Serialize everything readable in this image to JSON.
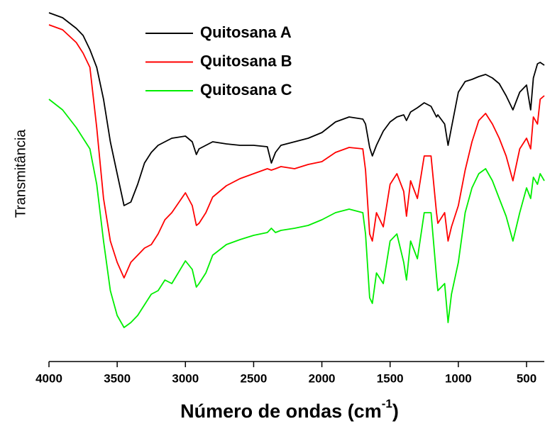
{
  "chart_data": {
    "type": "line",
    "y_label": "Transmitância",
    "x_label": {
      "text": "Número de ondas (cm",
      "superscript": "-1",
      "suffix": ")"
    },
    "xlim": [
      4000,
      370
    ],
    "xticks": [
      4000,
      3500,
      3000,
      2500,
      2000,
      1500,
      1000,
      500
    ],
    "ylim": [
      0,
      100
    ],
    "x": [
      4000,
      3900,
      3800,
      3750,
      3700,
      3650,
      3600,
      3550,
      3500,
      3450,
      3400,
      3350,
      3300,
      3250,
      3200,
      3150,
      3100,
      3000,
      2950,
      2920,
      2900,
      2850,
      2800,
      2700,
      2600,
      2500,
      2400,
      2370,
      2340,
      2300,
      2200,
      2100,
      2000,
      1900,
      1800,
      1700,
      1680,
      1650,
      1630,
      1600,
      1550,
      1500,
      1450,
      1400,
      1380,
      1350,
      1300,
      1250,
      1200,
      1160,
      1150,
      1100,
      1075,
      1050,
      1000,
      950,
      900,
      850,
      800,
      750,
      700,
      650,
      600,
      550,
      500,
      470,
      450,
      420,
      400,
      370
    ],
    "series": [
      {
        "name": "Quitosana A",
        "color": "#000000",
        "values": [
          98.4,
          97,
          94,
          92,
          88,
          83,
          74,
          62,
          53,
          44,
          45,
          50,
          56,
          59,
          61,
          62,
          63,
          63.6,
          62,
          58.4,
          60,
          61,
          62,
          61.4,
          61,
          61,
          60.6,
          56,
          59,
          61,
          62,
          63,
          64.6,
          67.6,
          69,
          68.4,
          67,
          60.4,
          58,
          61,
          65,
          67.6,
          69,
          69.6,
          68,
          70.4,
          71.6,
          73,
          72,
          69,
          69.6,
          67,
          61,
          66,
          76,
          79,
          79.6,
          80.4,
          81,
          80,
          78.4,
          75,
          71,
          76,
          78,
          71,
          80,
          84,
          84.4,
          83.6
        ]
      },
      {
        "name": "Quitosana B",
        "color": "#ff0000",
        "values": [
          95,
          93.6,
          90,
          87,
          83,
          66,
          46,
          34,
          28,
          23.6,
          28,
          30,
          32,
          33,
          36,
          40,
          42,
          47.6,
          44,
          38.4,
          39,
          42,
          46.4,
          49.6,
          51.6,
          53,
          54.4,
          54,
          54.4,
          55,
          54.4,
          55.6,
          56.4,
          59,
          60.4,
          60,
          54,
          36,
          34,
          42,
          38,
          50,
          53,
          48,
          41,
          51,
          46,
          58,
          58,
          42,
          39,
          42,
          34,
          38,
          44,
          54,
          62,
          68,
          70,
          67,
          63,
          58,
          51,
          60,
          63,
          60,
          69,
          67,
          74,
          75
        ]
      },
      {
        "name": "Quitosana C",
        "color": "#00ee00",
        "values": [
          74,
          71,
          66,
          63,
          60,
          50,
          34,
          20,
          13,
          9.6,
          11,
          13,
          16,
          19,
          20,
          23,
          22,
          28.4,
          26,
          21,
          22,
          25,
          30,
          33,
          34.4,
          35.6,
          36.4,
          37.6,
          36.4,
          37,
          37.6,
          38.4,
          40,
          42,
          43,
          42,
          36,
          18,
          16.4,
          25,
          22,
          34,
          36,
          28,
          23,
          34,
          29,
          42,
          42,
          24,
          20,
          22,
          11,
          19,
          28,
          42,
          49,
          53,
          54.4,
          51,
          46,
          41,
          34,
          42,
          49,
          46,
          52,
          50,
          53,
          51
        ]
      }
    ]
  }
}
